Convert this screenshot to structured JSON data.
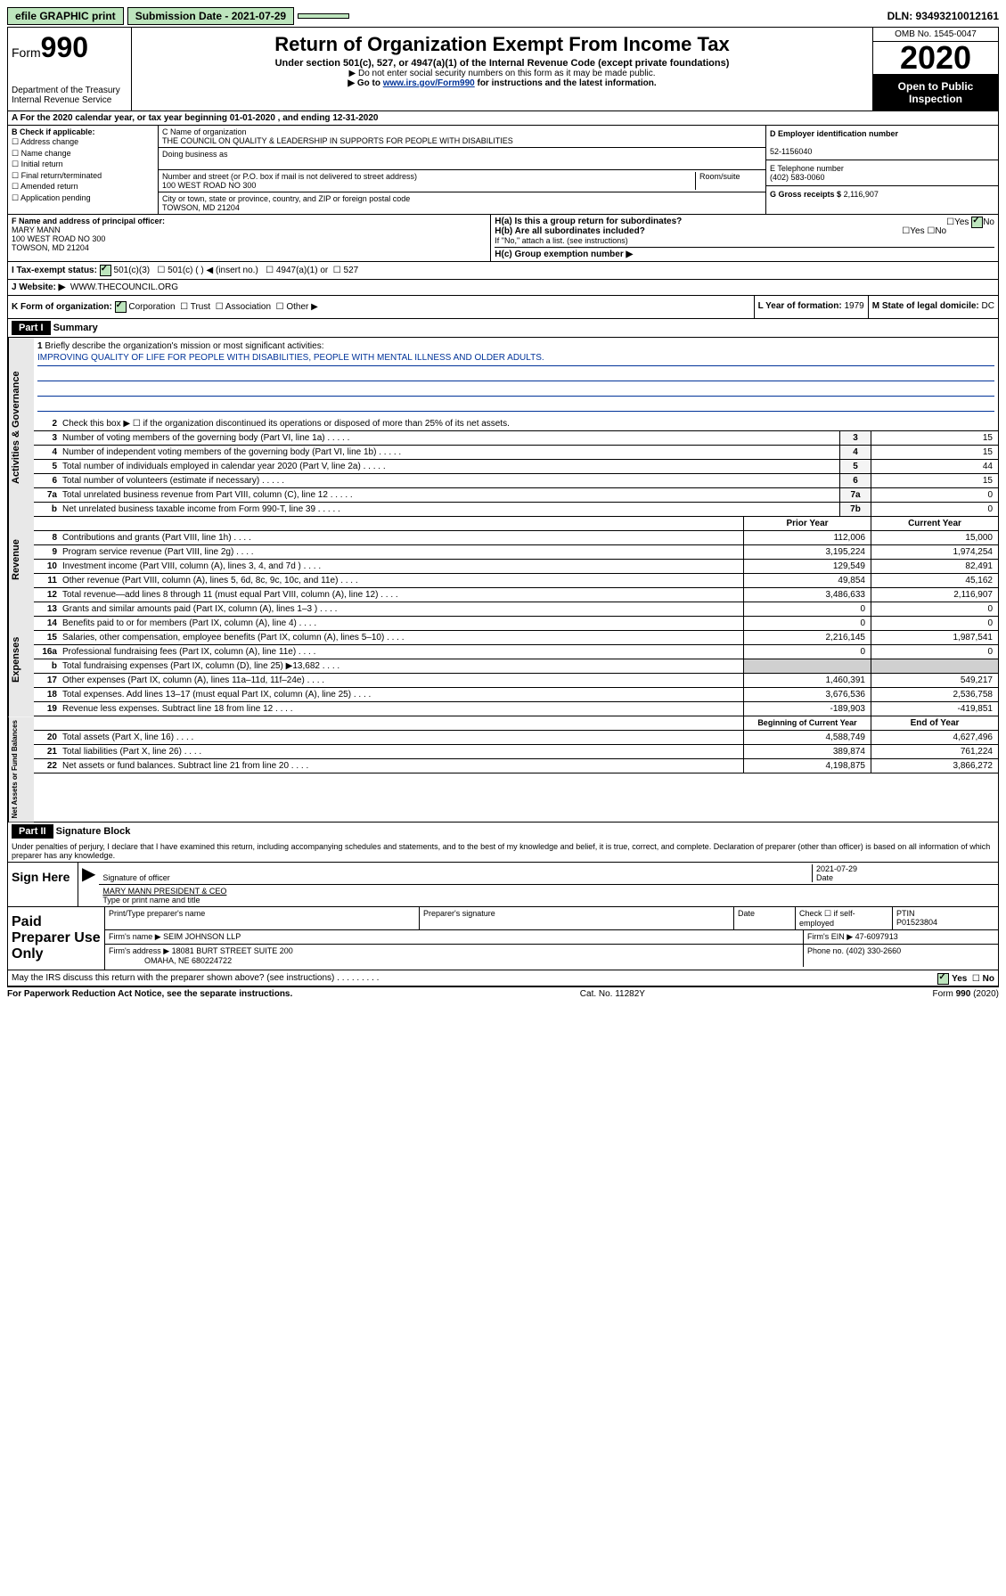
{
  "topbar": {
    "efile": "efile GRAPHIC print",
    "submission": "Submission Date - 2021-07-29",
    "dln": "DLN: 93493210012161"
  },
  "header": {
    "form_word": "Form",
    "form_num": "990",
    "dept": "Department of the Treasury\nInternal Revenue Service",
    "title": "Return of Organization Exempt From Income Tax",
    "sub": "Under section 501(c), 527, or 4947(a)(1) of the Internal Revenue Code (except private foundations)",
    "note1": "▶ Do not enter social security numbers on this form as it may be made public.",
    "note2": "▶ Go to www.irs.gov/Form990 for instructions and the latest information.",
    "omb": "OMB No. 1545-0047",
    "year": "2020",
    "open": "Open to Public Inspection"
  },
  "row_a": "A For the 2020 calendar year, or tax year beginning 01-01-2020    , and ending 12-31-2020",
  "b_label": "B Check if applicable:",
  "b_items": [
    "Address change",
    "Name change",
    "Initial return",
    "Final return/terminated",
    "Amended return",
    "Application pending"
  ],
  "c": {
    "name_lbl": "C Name of organization",
    "name": "THE COUNCIL ON QUALITY & LEADERSHIP IN SUPPORTS FOR PEOPLE WITH DISABILITIES",
    "dba_lbl": "Doing business as",
    "addr_lbl": "Number and street (or P.O. box if mail is not delivered to street address)",
    "room_lbl": "Room/suite",
    "addr": "100 WEST ROAD NO 300",
    "city_lbl": "City or town, state or province, country, and ZIP or foreign postal code",
    "city": "TOWSON, MD  21204"
  },
  "d": {
    "lbl": "D Employer identification number",
    "val": "52-1156040"
  },
  "e": {
    "lbl": "E Telephone number",
    "val": "(402) 583-0060"
  },
  "g": {
    "lbl": "G Gross receipts $",
    "val": "2,116,907"
  },
  "f": {
    "lbl": "F  Name and address of principal officer:",
    "name": "MARY MANN",
    "addr1": "100 WEST ROAD NO 300",
    "addr2": "TOWSON, MD  21204"
  },
  "h": {
    "a": "H(a)  Is this a group return for subordinates?",
    "b": "H(b)  Are all subordinates included?",
    "note": "If \"No,\" attach a list. (see instructions)",
    "c": "H(c)  Group exemption number ▶"
  },
  "i": {
    "lbl": "I    Tax-exempt status:",
    "opts": [
      "501(c)(3)",
      "501(c) (   ) ◀ (insert no.)",
      "4947(a)(1) or",
      "527"
    ]
  },
  "j": {
    "lbl": "J    Website: ▶",
    "val": "WWW.THECOUNCIL.ORG"
  },
  "k": {
    "lbl": "K Form of organization:",
    "opts": [
      "Corporation",
      "Trust",
      "Association",
      "Other ▶"
    ]
  },
  "l": {
    "lbl": "L Year of formation:",
    "val": "1979"
  },
  "m": {
    "lbl": "M State of legal domicile:",
    "val": "DC"
  },
  "part1": {
    "lbl": "Part I",
    "title": "Summary"
  },
  "line1": {
    "num": "1",
    "lbl": "Briefly describe the organization's mission or most significant activities:",
    "text": "IMPROVING QUALITY OF LIFE FOR PEOPLE WITH DISABILITIES, PEOPLE WITH MENTAL ILLNESS AND OLDER ADULTS."
  },
  "line2": "Check this box ▶ ☐  if the organization discontinued its operations or disposed of more than 25% of its net assets.",
  "gov_lines": [
    {
      "n": "3",
      "d": "Number of voting members of the governing body (Part VI, line 1a)",
      "b": "3",
      "v": "15"
    },
    {
      "n": "4",
      "d": "Number of independent voting members of the governing body (Part VI, line 1b)",
      "b": "4",
      "v": "15"
    },
    {
      "n": "5",
      "d": "Total number of individuals employed in calendar year 2020 (Part V, line 2a)",
      "b": "5",
      "v": "44"
    },
    {
      "n": "6",
      "d": "Total number of volunteers (estimate if necessary)",
      "b": "6",
      "v": "15"
    },
    {
      "n": "7a",
      "d": "Total unrelated business revenue from Part VIII, column (C), line 12",
      "b": "7a",
      "v": "0"
    },
    {
      "n": "b",
      "d": "Net unrelated business taxable income from Form 990-T, line 39",
      "b": "7b",
      "v": "0"
    }
  ],
  "rev_hdr": {
    "py": "Prior Year",
    "cy": "Current Year"
  },
  "rev_lines": [
    {
      "n": "8",
      "d": "Contributions and grants (Part VIII, line 1h)",
      "p": "112,006",
      "c": "15,000"
    },
    {
      "n": "9",
      "d": "Program service revenue (Part VIII, line 2g)",
      "p": "3,195,224",
      "c": "1,974,254"
    },
    {
      "n": "10",
      "d": "Investment income (Part VIII, column (A), lines 3, 4, and 7d )",
      "p": "129,549",
      "c": "82,491"
    },
    {
      "n": "11",
      "d": "Other revenue (Part VIII, column (A), lines 5, 6d, 8c, 9c, 10c, and 11e)",
      "p": "49,854",
      "c": "45,162"
    },
    {
      "n": "12",
      "d": "Total revenue—add lines 8 through 11 (must equal Part VIII, column (A), line 12)",
      "p": "3,486,633",
      "c": "2,116,907"
    }
  ],
  "exp_lines": [
    {
      "n": "13",
      "d": "Grants and similar amounts paid (Part IX, column (A), lines 1–3 )",
      "p": "0",
      "c": "0"
    },
    {
      "n": "14",
      "d": "Benefits paid to or for members (Part IX, column (A), line 4)",
      "p": "0",
      "c": "0"
    },
    {
      "n": "15",
      "d": "Salaries, other compensation, employee benefits (Part IX, column (A), lines 5–10)",
      "p": "2,216,145",
      "c": "1,987,541"
    },
    {
      "n": "16a",
      "d": "Professional fundraising fees (Part IX, column (A), line 11e)",
      "p": "0",
      "c": "0"
    },
    {
      "n": "b",
      "d": "Total fundraising expenses (Part IX, column (D), line 25) ▶13,682",
      "p": "",
      "c": "",
      "blank": true
    },
    {
      "n": "17",
      "d": "Other expenses (Part IX, column (A), lines 11a–11d, 11f–24e)",
      "p": "1,460,391",
      "c": "549,217"
    },
    {
      "n": "18",
      "d": "Total expenses. Add lines 13–17 (must equal Part IX, column (A), line 25)",
      "p": "3,676,536",
      "c": "2,536,758"
    },
    {
      "n": "19",
      "d": "Revenue less expenses. Subtract line 18 from line 12",
      "p": "-189,903",
      "c": "-419,851"
    }
  ],
  "na_hdr": {
    "b": "Beginning of Current Year",
    "e": "End of Year"
  },
  "na_lines": [
    {
      "n": "20",
      "d": "Total assets (Part X, line 16)",
      "p": "4,588,749",
      "c": "4,627,496"
    },
    {
      "n": "21",
      "d": "Total liabilities (Part X, line 26)",
      "p": "389,874",
      "c": "761,224"
    },
    {
      "n": "22",
      "d": "Net assets or fund balances. Subtract line 21 from line 20",
      "p": "4,198,875",
      "c": "3,866,272"
    }
  ],
  "vtabs": {
    "gov": "Activities & Governance",
    "rev": "Revenue",
    "exp": "Expenses",
    "na": "Net Assets or Fund Balances"
  },
  "part2": {
    "lbl": "Part II",
    "title": "Signature Block"
  },
  "sig": {
    "text": "Under penalties of perjury, I declare that I have examined this return, including accompanying schedules and statements, and to the best of my knowledge and belief, it is true, correct, and complete. Declaration of preparer (other than officer) is based on all information of which preparer has any knowledge.",
    "here": "Sign Here",
    "off_sig": "Signature of officer",
    "date": "2021-07-29",
    "date_lbl": "Date",
    "name": "MARY MANN  PRESIDENT & CEO",
    "name_lbl": "Type or print name and title"
  },
  "paid": {
    "lbl": "Paid Preparer Use Only",
    "h1": "Print/Type preparer's name",
    "h2": "Preparer's signature",
    "h3": "Date",
    "h4": "Check ☐ if self-employed",
    "h5_lbl": "PTIN",
    "h5": "P01523804",
    "firm_lbl": "Firm's name    ▶",
    "firm": "SEIM JOHNSON LLP",
    "ein_lbl": "Firm's EIN ▶",
    "ein": "47-6097913",
    "addr_lbl": "Firm's address ▶",
    "addr1": "18081 BURT STREET SUITE 200",
    "addr2": "OMAHA, NE  680224722",
    "phone_lbl": "Phone no.",
    "phone": "(402) 330-2660"
  },
  "discuss": "May the IRS discuss this return with the preparer shown above? (see instructions)",
  "footer": {
    "l": "For Paperwork Reduction Act Notice, see the separate instructions.",
    "m": "Cat. No. 11282Y",
    "r": "Form 990 (2020)"
  },
  "yn": {
    "yes": "Yes",
    "no": "No"
  }
}
